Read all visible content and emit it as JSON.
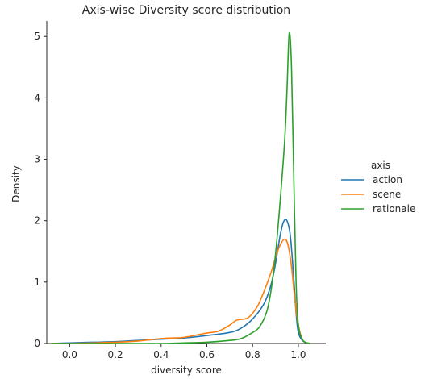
{
  "chart_data": {
    "type": "line",
    "title": "Axis-wise Diversity score distribution",
    "xlabel": "diversity score",
    "ylabel": "Density",
    "xlim": [
      -0.1,
      1.12
    ],
    "ylim": [
      0,
      5.2
    ],
    "xticks": [
      0.0,
      0.2,
      0.4,
      0.6,
      0.8,
      1.0
    ],
    "xtick_labels": [
      "0.0",
      "0.2",
      "0.4",
      "0.6",
      "0.8",
      "1.0"
    ],
    "yticks": [
      0,
      1,
      2,
      3,
      4,
      5
    ],
    "ytick_labels": [
      "0",
      "1",
      "2",
      "3",
      "4",
      "5"
    ],
    "grid": false,
    "legend": {
      "title": "axis",
      "placement": "right"
    },
    "series": [
      {
        "name": "action",
        "color": "#1f77b4",
        "points": [
          [
            -0.08,
            0.0
          ],
          [
            0.0,
            0.01
          ],
          [
            0.1,
            0.02
          ],
          [
            0.2,
            0.03
          ],
          [
            0.3,
            0.05
          ],
          [
            0.4,
            0.07
          ],
          [
            0.5,
            0.09
          ],
          [
            0.6,
            0.13
          ],
          [
            0.7,
            0.18
          ],
          [
            0.75,
            0.25
          ],
          [
            0.8,
            0.4
          ],
          [
            0.85,
            0.65
          ],
          [
            0.88,
            0.95
          ],
          [
            0.9,
            1.3
          ],
          [
            0.92,
            1.75
          ],
          [
            0.935,
            1.98
          ],
          [
            0.95,
            2.0
          ],
          [
            0.965,
            1.75
          ],
          [
            0.98,
            1.05
          ],
          [
            0.99,
            0.5
          ],
          [
            1.0,
            0.18
          ],
          [
            1.02,
            0.04
          ],
          [
            1.05,
            0.0
          ]
        ]
      },
      {
        "name": "scene",
        "color": "#ff7f0e",
        "points": [
          [
            -0.08,
            0.0
          ],
          [
            0.0,
            0.0
          ],
          [
            0.1,
            0.01
          ],
          [
            0.2,
            0.02
          ],
          [
            0.3,
            0.04
          ],
          [
            0.4,
            0.08
          ],
          [
            0.45,
            0.09
          ],
          [
            0.5,
            0.1
          ],
          [
            0.6,
            0.17
          ],
          [
            0.65,
            0.2
          ],
          [
            0.7,
            0.3
          ],
          [
            0.73,
            0.38
          ],
          [
            0.78,
            0.42
          ],
          [
            0.82,
            0.6
          ],
          [
            0.85,
            0.85
          ],
          [
            0.88,
            1.15
          ],
          [
            0.9,
            1.4
          ],
          [
            0.92,
            1.6
          ],
          [
            0.94,
            1.7
          ],
          [
            0.955,
            1.6
          ],
          [
            0.97,
            1.25
          ],
          [
            0.985,
            0.7
          ],
          [
            1.0,
            0.3
          ],
          [
            1.02,
            0.05
          ],
          [
            1.05,
            0.0
          ]
        ]
      },
      {
        "name": "rationale",
        "color": "#2ca02c",
        "points": [
          [
            -0.08,
            0.0
          ],
          [
            0.0,
            0.0
          ],
          [
            0.2,
            0.0
          ],
          [
            0.4,
            0.0
          ],
          [
            0.5,
            0.01
          ],
          [
            0.6,
            0.02
          ],
          [
            0.7,
            0.05
          ],
          [
            0.75,
            0.08
          ],
          [
            0.8,
            0.18
          ],
          [
            0.83,
            0.27
          ],
          [
            0.86,
            0.5
          ],
          [
            0.88,
            0.85
          ],
          [
            0.9,
            1.45
          ],
          [
            0.92,
            2.3
          ],
          [
            0.94,
            3.3
          ],
          [
            0.95,
            4.1
          ],
          [
            0.96,
            5.05
          ],
          [
            0.97,
            4.5
          ],
          [
            0.98,
            2.7
          ],
          [
            0.99,
            1.0
          ],
          [
            1.0,
            0.3
          ],
          [
            1.02,
            0.05
          ],
          [
            1.05,
            0.0
          ]
        ]
      }
    ]
  }
}
